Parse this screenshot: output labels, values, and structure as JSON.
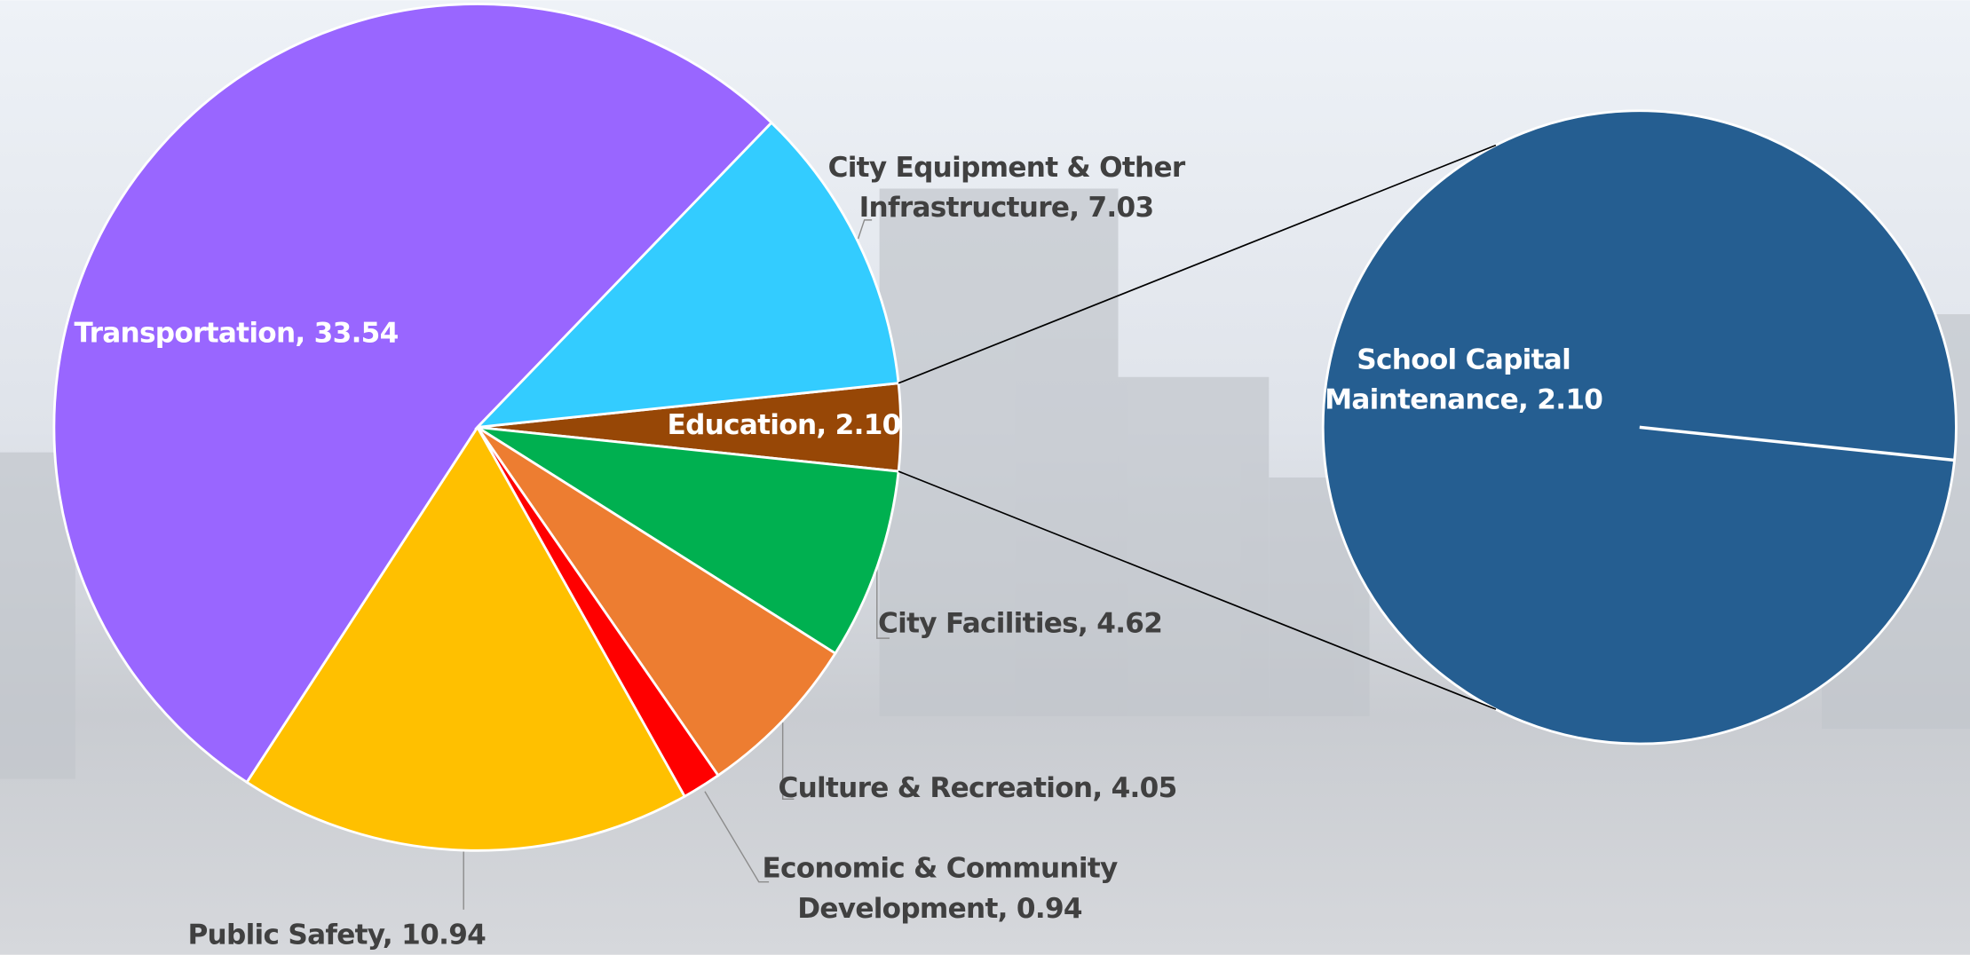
{
  "chart_data": {
    "type": "pie-of-pie",
    "values": [
      2.1,
      4.62,
      4.05,
      0.94,
      10.94,
      33.54,
      7.03
    ],
    "value_labels": [
      [
        "Education, 2.10"
      ],
      [
        "City Facilities, 4.62"
      ],
      [
        "Culture & Recreation, 4.05"
      ],
      [
        "Economic & Community",
        "Development, 0.94"
      ],
      [
        "Public Safety, 10.94"
      ],
      [
        "Transportation, 33.54"
      ],
      [
        "City Equipment & Other",
        "Infrastructure, 7.03"
      ]
    ],
    "colors": [
      "#974706",
      "#00b050",
      "#ed7d31",
      "#ff0000",
      "#ffc000",
      "#9966ff",
      "#33ccff"
    ],
    "secondary": {
      "values": [
        2.1
      ],
      "value_labels": [
        [
          "School Capital",
          "Maintenance, 2.10"
        ]
      ],
      "colors": [
        "#255e91"
      ]
    }
  }
}
